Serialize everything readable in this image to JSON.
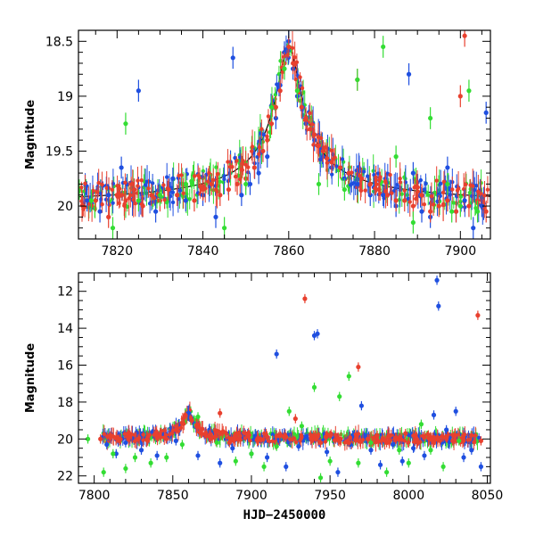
{
  "colors": {
    "blue": "#1f4fe0",
    "red": "#e8402e",
    "green": "#33dd33",
    "model": "#000000"
  },
  "chart_data": [
    {
      "type": "scatter",
      "title": "",
      "xlabel": "",
      "ylabel": "Magnitude",
      "xlim": [
        7811,
        7907
      ],
      "ylim": [
        20.3,
        18.4
      ],
      "y_inverted": true,
      "xticks": [
        7820,
        7840,
        7860,
        7880,
        7900
      ],
      "yticks": [
        18.5,
        19,
        19.5,
        20
      ],
      "ytick_labels": [
        "18.5",
        "19",
        "19.5",
        "20"
      ],
      "model_curve": {
        "description": "microlensing fit",
        "baseline": 20.0,
        "peak_time": 7860,
        "peak_mag": 18.55
      },
      "series": [
        {
          "color": "blue",
          "points": [
            [
              7813,
              19.95
            ],
            [
              7816,
              20.05
            ],
            [
              7818,
              19.9
            ],
            [
              7821,
              19.65
            ],
            [
              7824,
              19.85
            ],
            [
              7825,
              18.95
            ],
            [
              7829,
              20.05
            ],
            [
              7833,
              19.75
            ],
            [
              7836,
              19.95
            ],
            [
              7840,
              19.9
            ],
            [
              7843,
              20.1
            ],
            [
              7847,
              18.65
            ],
            [
              7849,
              19.9
            ],
            [
              7851,
              19.8
            ],
            [
              7853,
              19.7
            ],
            [
              7855,
              19.55
            ],
            [
              7857,
              19.2
            ],
            [
              7858,
              18.9
            ],
            [
              7859,
              18.6
            ],
            [
              7860,
              18.5
            ],
            [
              7861,
              18.75
            ],
            [
              7862,
              19.0
            ],
            [
              7864,
              19.25
            ],
            [
              7866,
              19.4
            ],
            [
              7868,
              19.55
            ],
            [
              7870,
              19.65
            ],
            [
              7873,
              19.75
            ],
            [
              7876,
              19.8
            ],
            [
              7879,
              19.9
            ],
            [
              7882,
              19.9
            ],
            [
              7885,
              20.0
            ],
            [
              7888,
              18.8
            ],
            [
              7889,
              19.7
            ],
            [
              7891,
              20.05
            ],
            [
              7893,
              20.1
            ],
            [
              7895,
              19.9
            ],
            [
              7897,
              19.65
            ],
            [
              7899,
              20.05
            ],
            [
              7901,
              19.95
            ],
            [
              7903,
              20.2
            ],
            [
              7905,
              20.0
            ],
            [
              7906,
              19.15
            ]
          ]
        },
        {
          "color": "red",
          "points": [
            [
              7812,
              20.0
            ],
            [
              7815,
              19.95
            ],
            [
              7818,
              20.1
            ],
            [
              7820,
              19.9
            ],
            [
              7822,
              19.95
            ],
            [
              7824,
              19.85
            ],
            [
              7826,
              20.0
            ],
            [
              7828,
              19.9
            ],
            [
              7830,
              19.95
            ],
            [
              7832,
              19.85
            ],
            [
              7834,
              19.9
            ],
            [
              7836,
              19.8
            ],
            [
              7838,
              19.95
            ],
            [
              7840,
              19.85
            ],
            [
              7842,
              19.8
            ],
            [
              7844,
              19.9
            ],
            [
              7846,
              19.85
            ],
            [
              7848,
              19.8
            ],
            [
              7850,
              19.75
            ],
            [
              7852,
              19.65
            ],
            [
              7854,
              19.5
            ],
            [
              7855,
              19.4
            ],
            [
              7856,
              19.25
            ],
            [
              7857,
              19.1
            ],
            [
              7858,
              18.95
            ],
            [
              7859,
              18.7
            ],
            [
              7860,
              18.55
            ],
            [
              7861,
              18.7
            ],
            [
              7862,
              18.95
            ],
            [
              7863,
              19.1
            ],
            [
              7864,
              19.2
            ],
            [
              7865,
              19.3
            ],
            [
              7866,
              19.35
            ],
            [
              7867,
              19.45
            ],
            [
              7868,
              19.5
            ],
            [
              7870,
              19.6
            ],
            [
              7872,
              19.65
            ],
            [
              7874,
              19.7
            ],
            [
              7876,
              18.85
            ],
            [
              7877,
              19.75
            ],
            [
              7879,
              19.8
            ],
            [
              7881,
              19.85
            ],
            [
              7883,
              19.9
            ],
            [
              7885,
              19.95
            ],
            [
              7887,
              19.95
            ],
            [
              7889,
              20.0
            ],
            [
              7891,
              19.9
            ],
            [
              7893,
              20.05
            ],
            [
              7895,
              20.0
            ],
            [
              7897,
              19.95
            ],
            [
              7899,
              20.05
            ],
            [
              7900,
              19.0
            ],
            [
              7901,
              18.45
            ],
            [
              7902,
              20.0
            ],
            [
              7904,
              19.95
            ],
            [
              7906,
              20.05
            ]
          ]
        },
        {
          "color": "green",
          "points": [
            [
              7814,
              19.95
            ],
            [
              7819,
              20.2
            ],
            [
              7822,
              19.25
            ],
            [
              7825,
              19.95
            ],
            [
              7830,
              19.9
            ],
            [
              7836,
              19.8
            ],
            [
              7845,
              20.2
            ],
            [
              7850,
              19.8
            ],
            [
              7856,
              19.1
            ],
            [
              7859,
              18.75
            ],
            [
              7862,
              18.95
            ],
            [
              7867,
              19.8
            ],
            [
              7873,
              19.85
            ],
            [
              7876,
              18.85
            ],
            [
              7882,
              18.55
            ],
            [
              7885,
              19.55
            ],
            [
              7889,
              20.15
            ],
            [
              7893,
              19.2
            ],
            [
              7897,
              19.8
            ],
            [
              7898,
              20.05
            ],
            [
              7900,
              20.0
            ],
            [
              7902,
              18.95
            ],
            [
              7904,
              20.05
            ]
          ]
        }
      ]
    },
    {
      "type": "scatter",
      "title": "",
      "xlabel": "HJD−2450000",
      "ylabel": "Magnitude",
      "xlim": [
        7790,
        8052
      ],
      "ylim": [
        22.4,
        11
      ],
      "y_inverted": true,
      "xticks": [
        7800,
        7850,
        7900,
        7950,
        8000,
        8050
      ],
      "yticks": [
        12,
        14,
        16,
        18,
        20,
        22
      ],
      "ytick_labels": [
        "12",
        "14",
        "16",
        "18",
        "20",
        "22"
      ],
      "series": [
        {
          "color": "blue",
          "points": [
            [
              7808,
              20.3
            ],
            [
              7814,
              20.8
            ],
            [
              7820,
              20.2
            ],
            [
              7830,
              20.6
            ],
            [
              7840,
              20.9
            ],
            [
              7852,
              20.1
            ],
            [
              7860,
              18.6
            ],
            [
              7866,
              20.9
            ],
            [
              7880,
              21.3
            ],
            [
              7888,
              20.5
            ],
            [
              7900,
              20.8
            ],
            [
              7910,
              21.0
            ],
            [
              7916,
              15.4
            ],
            [
              7922,
              21.5
            ],
            [
              7930,
              20.4
            ],
            [
              7940,
              14.4
            ],
            [
              7942,
              14.3
            ],
            [
              7948,
              20.7
            ],
            [
              7955,
              21.8
            ],
            [
              7963,
              20.3
            ],
            [
              7970,
              18.2
            ],
            [
              7976,
              20.6
            ],
            [
              7982,
              21.4
            ],
            [
              7990,
              20.3
            ],
            [
              7996,
              21.2
            ],
            [
              8003,
              20.5
            ],
            [
              8010,
              20.9
            ],
            [
              8016,
              18.7
            ],
            [
              8018,
              11.4
            ],
            [
              8019,
              12.8
            ],
            [
              8024,
              19.5
            ],
            [
              8030,
              18.5
            ],
            [
              8035,
              21.0
            ],
            [
              8040,
              20.6
            ],
            [
              8046,
              21.5
            ]
          ]
        },
        {
          "color": "red",
          "points": [
            [
              7804,
              20.0
            ],
            [
              7810,
              19.9
            ],
            [
              7816,
              20.1
            ],
            [
              7822,
              19.8
            ],
            [
              7828,
              20.0
            ],
            [
              7834,
              20.1
            ],
            [
              7840,
              19.9
            ],
            [
              7846,
              20.0
            ],
            [
              7852,
              19.5
            ],
            [
              7858,
              18.7
            ],
            [
              7862,
              19.0
            ],
            [
              7868,
              19.7
            ],
            [
              7874,
              20.0
            ],
            [
              7880,
              18.6
            ],
            [
              7886,
              20.2
            ],
            [
              7892,
              20.0
            ],
            [
              7898,
              19.8
            ],
            [
              7904,
              20.1
            ],
            [
              7910,
              19.9
            ],
            [
              7916,
              20.3
            ],
            [
              7922,
              19.9
            ],
            [
              7928,
              18.9
            ],
            [
              7934,
              12.4
            ],
            [
              7938,
              20.0
            ],
            [
              7944,
              20.2
            ],
            [
              7950,
              19.8
            ],
            [
              7956,
              20.0
            ],
            [
              7962,
              20.2
            ],
            [
              7968,
              16.1
            ],
            [
              7974,
              20.0
            ],
            [
              7980,
              19.8
            ],
            [
              7986,
              20.2
            ],
            [
              7992,
              20.0
            ],
            [
              7998,
              19.7
            ],
            [
              8004,
              20.1
            ],
            [
              8010,
              19.9
            ],
            [
              8016,
              20.2
            ],
            [
              8022,
              19.9
            ],
            [
              8028,
              20.1
            ],
            [
              8034,
              20.0
            ],
            [
              8040,
              19.8
            ],
            [
              8044,
              13.3
            ],
            [
              8046,
              20.1
            ]
          ]
        },
        {
          "color": "green",
          "points": [
            [
              7796,
              20.0
            ],
            [
              7806,
              21.8
            ],
            [
              7812,
              20.8
            ],
            [
              7820,
              21.6
            ],
            [
              7826,
              21.0
            ],
            [
              7836,
              21.3
            ],
            [
              7846,
              21.0
            ],
            [
              7856,
              20.3
            ],
            [
              7866,
              18.8
            ],
            [
              7878,
              20.2
            ],
            [
              7890,
              21.2
            ],
            [
              7900,
              20.8
            ],
            [
              7908,
              21.5
            ],
            [
              7916,
              20.4
            ],
            [
              7924,
              18.5
            ],
            [
              7932,
              19.3
            ],
            [
              7940,
              17.2
            ],
            [
              7944,
              22.1
            ],
            [
              7950,
              21.2
            ],
            [
              7956,
              17.7
            ],
            [
              7962,
              16.6
            ],
            [
              7968,
              21.3
            ],
            [
              7976,
              20.2
            ],
            [
              7986,
              21.8
            ],
            [
              7994,
              20.6
            ],
            [
              8000,
              21.3
            ],
            [
              8008,
              19.2
            ],
            [
              8014,
              20.6
            ],
            [
              8022,
              21.5
            ],
            [
              8032,
              20.1
            ]
          ]
        }
      ]
    }
  ]
}
